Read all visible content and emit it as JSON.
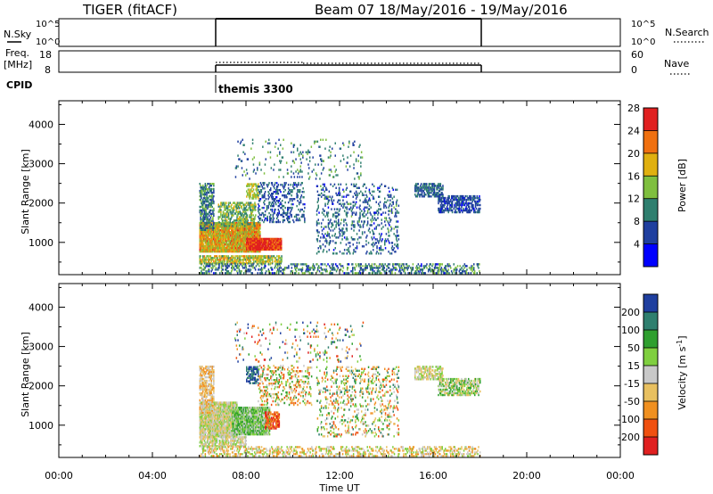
{
  "header": {
    "radar_title": "TIGER (fitACF)",
    "beam_date": "Beam 07  18/May/2016 - 19/May/2016"
  },
  "nsky_panel": {
    "left_label": "N.Sky",
    "right_label": "N.Search",
    "left_ticks": [
      "10^5",
      "10^0"
    ],
    "right_ticks": [
      "10^5",
      "10^0"
    ]
  },
  "freq_panel": {
    "left_label_1": "Freq.",
    "left_label_2": "[MHz]",
    "right_label": "Nave",
    "left_ticks": [
      "18",
      "8"
    ],
    "right_ticks": [
      "60",
      "0"
    ]
  },
  "cpid": {
    "label": "CPID",
    "program": "themis 3300"
  },
  "colors": {
    "power": [
      "#0000ff",
      "#1f3f9f",
      "#2f7f6f",
      "#7fbf3f",
      "#e0b010",
      "#f07010",
      "#e02020"
    ],
    "velocity": [
      "#e02020",
      "#f05010",
      "#f09020",
      "#e8c060",
      "#c8c8c8",
      "#7fcf3f",
      "#2f9f2f",
      "#2f7f6f",
      "#1f3f9f"
    ]
  },
  "chart_data": [
    {
      "type": "heatmap",
      "name": "power",
      "ylabel": "Slant Range [km]",
      "ylim": [
        180,
        4600
      ],
      "xlim": [
        0,
        24
      ],
      "yticks": [
        "1000",
        "2000",
        "3000",
        "4000"
      ],
      "ytick_values": [
        1000,
        2000,
        3000,
        4000
      ],
      "colorbar_label": "Power [dB]",
      "colorbar_ticks": [
        "4",
        "8",
        "12",
        "16",
        "20",
        "24",
        "28"
      ],
      "colorbar_range": [
        0,
        32
      ],
      "blobs": [
        {
          "x": [
            6.0,
            8.6
          ],
          "y": [
            750,
            1500
          ],
          "values": [
            14,
            28
          ],
          "density": 0.9
        },
        {
          "x": [
            8.0,
            9.5
          ],
          "y": [
            800,
            1100
          ],
          "values": [
            26,
            30
          ],
          "density": 0.95
        },
        {
          "x": [
            6.0,
            9.5
          ],
          "y": [
            450,
            650
          ],
          "values": [
            12,
            24
          ],
          "density": 0.6
        },
        {
          "x": [
            6.0,
            6.6
          ],
          "y": [
            1300,
            2500
          ],
          "values": [
            6,
            16
          ],
          "density": 0.5
        },
        {
          "x": [
            6.8,
            8.4
          ],
          "y": [
            1400,
            2000
          ],
          "values": [
            10,
            20
          ],
          "density": 0.45
        },
        {
          "x": [
            8.0,
            8.5
          ],
          "y": [
            2100,
            2500
          ],
          "values": [
            16,
            20
          ],
          "density": 0.5
        },
        {
          "x": [
            8.5,
            10.5
          ],
          "y": [
            1500,
            2500
          ],
          "values": [
            4,
            12
          ],
          "density": 0.25
        },
        {
          "x": [
            11.0,
            14.5
          ],
          "y": [
            700,
            2500
          ],
          "values": [
            4,
            14
          ],
          "density": 0.15
        },
        {
          "x": [
            15.2,
            16.4
          ],
          "y": [
            2150,
            2500
          ],
          "values": [
            6,
            12
          ],
          "density": 0.55
        },
        {
          "x": [
            16.2,
            18.0
          ],
          "y": [
            1750,
            2200
          ],
          "values": [
            4,
            10
          ],
          "density": 0.55
        },
        {
          "x": [
            6.0,
            18.0
          ],
          "y": [
            200,
            450
          ],
          "values": [
            4,
            18
          ],
          "density": 0.3
        },
        {
          "x": [
            7.5,
            13.0
          ],
          "y": [
            2600,
            3600
          ],
          "values": [
            6,
            16
          ],
          "density": 0.05
        }
      ]
    },
    {
      "type": "heatmap",
      "name": "velocity",
      "xlabel": "Time UT",
      "ylabel": "Slant Range [km]",
      "ylim": [
        180,
        4600
      ],
      "xlim": [
        0,
        24
      ],
      "xticks": [
        "00:00",
        "04:00",
        "08:00",
        "12:00",
        "16:00",
        "20:00",
        "00:00"
      ],
      "xtick_values": [
        0,
        4,
        8,
        12,
        16,
        20,
        24
      ],
      "yticks": [
        "1000",
        "2000",
        "3000",
        "4000"
      ],
      "ytick_values": [
        1000,
        2000,
        3000,
        4000
      ],
      "colorbar_label": "Velocity [m s^-1]",
      "colorbar_ticks": [
        "-200",
        "-100",
        "-50",
        "-15",
        "15",
        "50",
        "100",
        "200"
      ],
      "blobs": [
        {
          "x": [
            6.0,
            7.6
          ],
          "y": [
            700,
            1600
          ],
          "classes": [
            3,
            5
          ],
          "density": 0.9
        },
        {
          "x": [
            7.4,
            9.0
          ],
          "y": [
            750,
            1450
          ],
          "classes": [
            4,
            6
          ],
          "density": 0.9
        },
        {
          "x": [
            8.8,
            9.4
          ],
          "y": [
            900,
            1350
          ],
          "classes": [
            0,
            2
          ],
          "density": 0.6
        },
        {
          "x": [
            6.0,
            8.0
          ],
          "y": [
            450,
            700
          ],
          "classes": [
            3,
            5
          ],
          "density": 0.6
        },
        {
          "x": [
            8.0,
            8.5
          ],
          "y": [
            2050,
            2500
          ],
          "classes": [
            7,
            8
          ],
          "density": 0.6
        },
        {
          "x": [
            6.0,
            6.6
          ],
          "y": [
            1300,
            2500
          ],
          "classes": [
            2,
            4
          ],
          "density": 0.5
        },
        {
          "x": [
            8.5,
            10.8
          ],
          "y": [
            1500,
            2500
          ],
          "classes": [
            1,
            6
          ],
          "density": 0.2
        },
        {
          "x": [
            11.0,
            14.5
          ],
          "y": [
            700,
            2500
          ],
          "classes": [
            1,
            7
          ],
          "density": 0.15
        },
        {
          "x": [
            15.2,
            16.4
          ],
          "y": [
            2150,
            2500
          ],
          "classes": [
            3,
            5
          ],
          "density": 0.55
        },
        {
          "x": [
            16.2,
            18.0
          ],
          "y": [
            1750,
            2200
          ],
          "classes": [
            3,
            6
          ],
          "density": 0.55
        },
        {
          "x": [
            6.0,
            18.0
          ],
          "y": [
            200,
            450
          ],
          "classes": [
            2,
            5
          ],
          "density": 0.3
        },
        {
          "x": [
            7.5,
            13.0
          ],
          "y": [
            2600,
            3600
          ],
          "classes": [
            0,
            8
          ],
          "density": 0.05
        }
      ]
    }
  ]
}
